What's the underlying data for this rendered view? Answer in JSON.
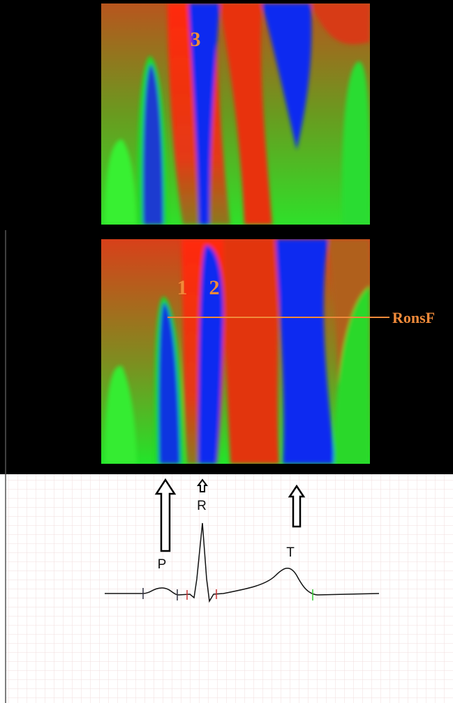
{
  "panels": {
    "top": {
      "labels": [
        "3"
      ]
    },
    "bottom": {
      "labels": [
        "1",
        "2"
      ],
      "annotation": "RonsF"
    }
  },
  "ecg": {
    "waves": [
      "P",
      "R",
      "T"
    ]
  }
}
